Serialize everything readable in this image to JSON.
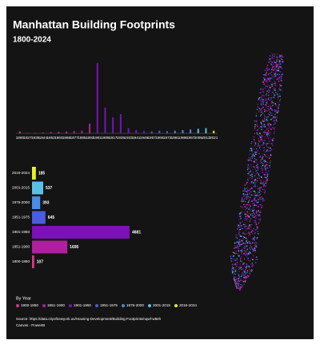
{
  "chart_data": [
    {
      "type": "column",
      "title": "Manhattan Building Footprints",
      "subtitle": "1800-2024",
      "categories": [
        "1800",
        "1827",
        "1835",
        "1844",
        "1852",
        "1860",
        "1868",
        "1877",
        "1885",
        "1893",
        "1901",
        "1909",
        "1917",
        "1925",
        "1933",
        "1941",
        "1949",
        "1957",
        "1965",
        "1973",
        "1981",
        "1989",
        "1997",
        "2005",
        "2013",
        "2021"
      ],
      "values": [
        30,
        5,
        5,
        10,
        20,
        25,
        30,
        35,
        40,
        150,
        1100,
        400,
        250,
        300,
        80,
        50,
        40,
        30,
        40,
        35,
        40,
        50,
        60,
        70,
        80,
        40
      ],
      "colors": [
        "#e0338a",
        "#e0338a",
        "#e0338a",
        "#e0338a",
        "#b01f9f",
        "#b01f9f",
        "#b01f9f",
        "#b01f9f",
        "#b01f9f",
        "#b01f9f",
        "#7a12b8",
        "#7a12b8",
        "#7a12b8",
        "#7a12b8",
        "#7a12b8",
        "#7a12b8",
        "#7a12b8",
        "#4a5ce0",
        "#4a5ce0",
        "#4a5ce0",
        "#4a8ae8",
        "#4a8ae8",
        "#4a8ae8",
        "#5ac0e8",
        "#5ac0e8",
        "#e8f01e"
      ]
    },
    {
      "type": "hbar",
      "legend_title": "By Year",
      "categories": [
        "1800-1850",
        "1851-1900",
        "1901-1950",
        "1951-1975",
        "1976-2000",
        "2001-2015",
        "2016-2024"
      ],
      "values": [
        107,
        1695,
        4681,
        645,
        393,
        537,
        185
      ],
      "colors": [
        "#e0338a",
        "#b01f9f",
        "#7a12b8",
        "#4a5ce0",
        "#4a8ae8",
        "#5ac0e8",
        "#e8f01e"
      ],
      "source": "Source: https://data.cityofnewyork.us/Housing-Development/Building-Footprints/nqwf-w8eh",
      "credit": "Canvas - PowerBI"
    }
  ]
}
